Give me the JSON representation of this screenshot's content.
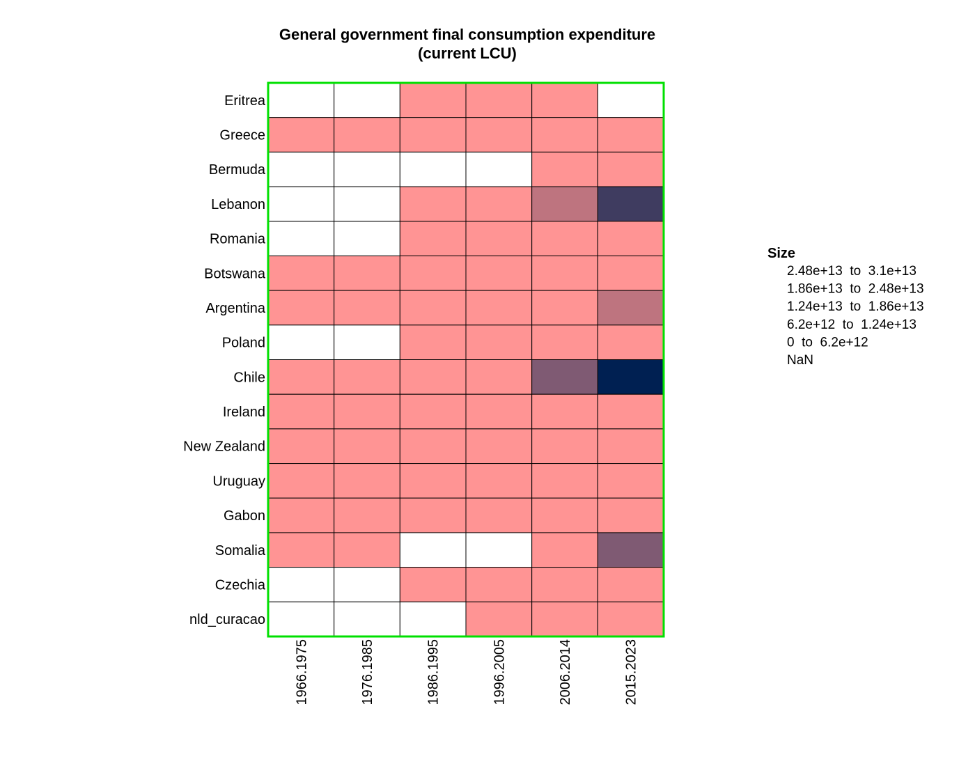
{
  "chart_data": {
    "type": "heatmap",
    "title_lines": [
      "General government final consumption expenditure",
      "(current LCU)"
    ],
    "rows": [
      "Eritrea",
      "Greece",
      "Bermuda",
      "Lebanon",
      "Romania",
      "Botswana",
      "Argentina",
      "Poland",
      "Chile",
      "Ireland",
      "New Zealand",
      "Uruguay",
      "Gabon",
      "Somalia",
      "Czechia",
      "nld_curacao"
    ],
    "columns": [
      "1966.1975",
      "1976.1985",
      "1986.1995",
      "1996.2005",
      "2006.2014",
      "2015.2023"
    ],
    "bins": [
      {
        "label": "NaN",
        "color": "#ffffff"
      },
      {
        "label": "0  to  6.2e+12",
        "color": "#ff9494"
      },
      {
        "label": "6.2e+12  to  1.24e+13",
        "color": "#be747f"
      },
      {
        "label": "1.24e+13  to  1.86e+13",
        "color": "#7f5a73"
      },
      {
        "label": "1.86e+13  to  2.48e+13",
        "color": "#3f3c60"
      },
      {
        "label": "2.48e+13  to  3.1e+13",
        "color": "#002052"
      }
    ],
    "cell_bins": [
      [
        0,
        0,
        1,
        1,
        1,
        0
      ],
      [
        1,
        1,
        1,
        1,
        1,
        1
      ],
      [
        0,
        0,
        0,
        0,
        1,
        1
      ],
      [
        0,
        0,
        1,
        1,
        2,
        4
      ],
      [
        0,
        0,
        1,
        1,
        1,
        1
      ],
      [
        1,
        1,
        1,
        1,
        1,
        1
      ],
      [
        1,
        1,
        1,
        1,
        1,
        2
      ],
      [
        0,
        0,
        1,
        1,
        1,
        1
      ],
      [
        1,
        1,
        1,
        1,
        3,
        5
      ],
      [
        1,
        1,
        1,
        1,
        1,
        1
      ],
      [
        1,
        1,
        1,
        1,
        1,
        1
      ],
      [
        1,
        1,
        1,
        1,
        1,
        1
      ],
      [
        1,
        1,
        1,
        1,
        1,
        1
      ],
      [
        1,
        1,
        0,
        0,
        1,
        3
      ],
      [
        0,
        0,
        1,
        1,
        1,
        1
      ],
      [
        0,
        0,
        0,
        1,
        1,
        1
      ]
    ],
    "legend": {
      "title": "Size",
      "items": [
        "2.48e+13  to  3.1e+13",
        "1.86e+13  to  2.48e+13",
        "1.24e+13  to  1.86e+13",
        "6.2e+12  to  1.24e+13",
        "0  to  6.2e+12",
        "NaN"
      ]
    },
    "border_color": "#00e000",
    "cell_line_color": "#000000"
  }
}
